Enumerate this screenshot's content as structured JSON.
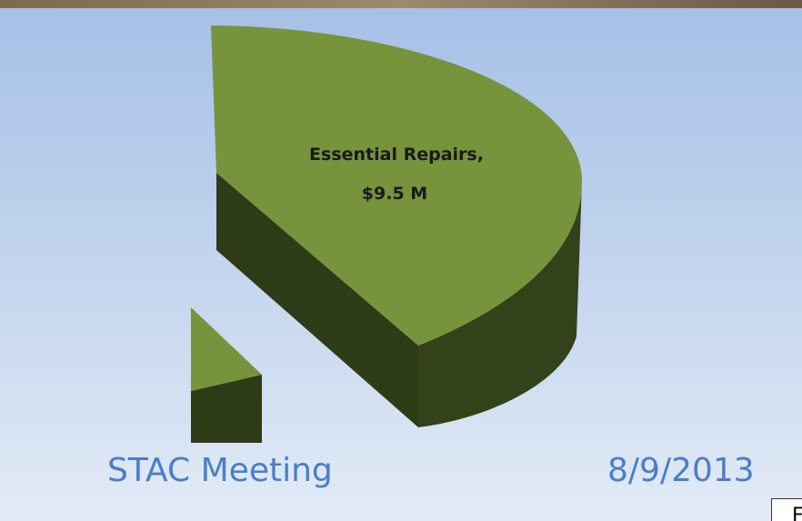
{
  "slide": {
    "slice_label": [
      "Essential Repairs,",
      "$9.5 M"
    ],
    "footer_left": "STAC Meeting",
    "footer_right": "8/9/2013",
    "corner_box": "F"
  }
}
